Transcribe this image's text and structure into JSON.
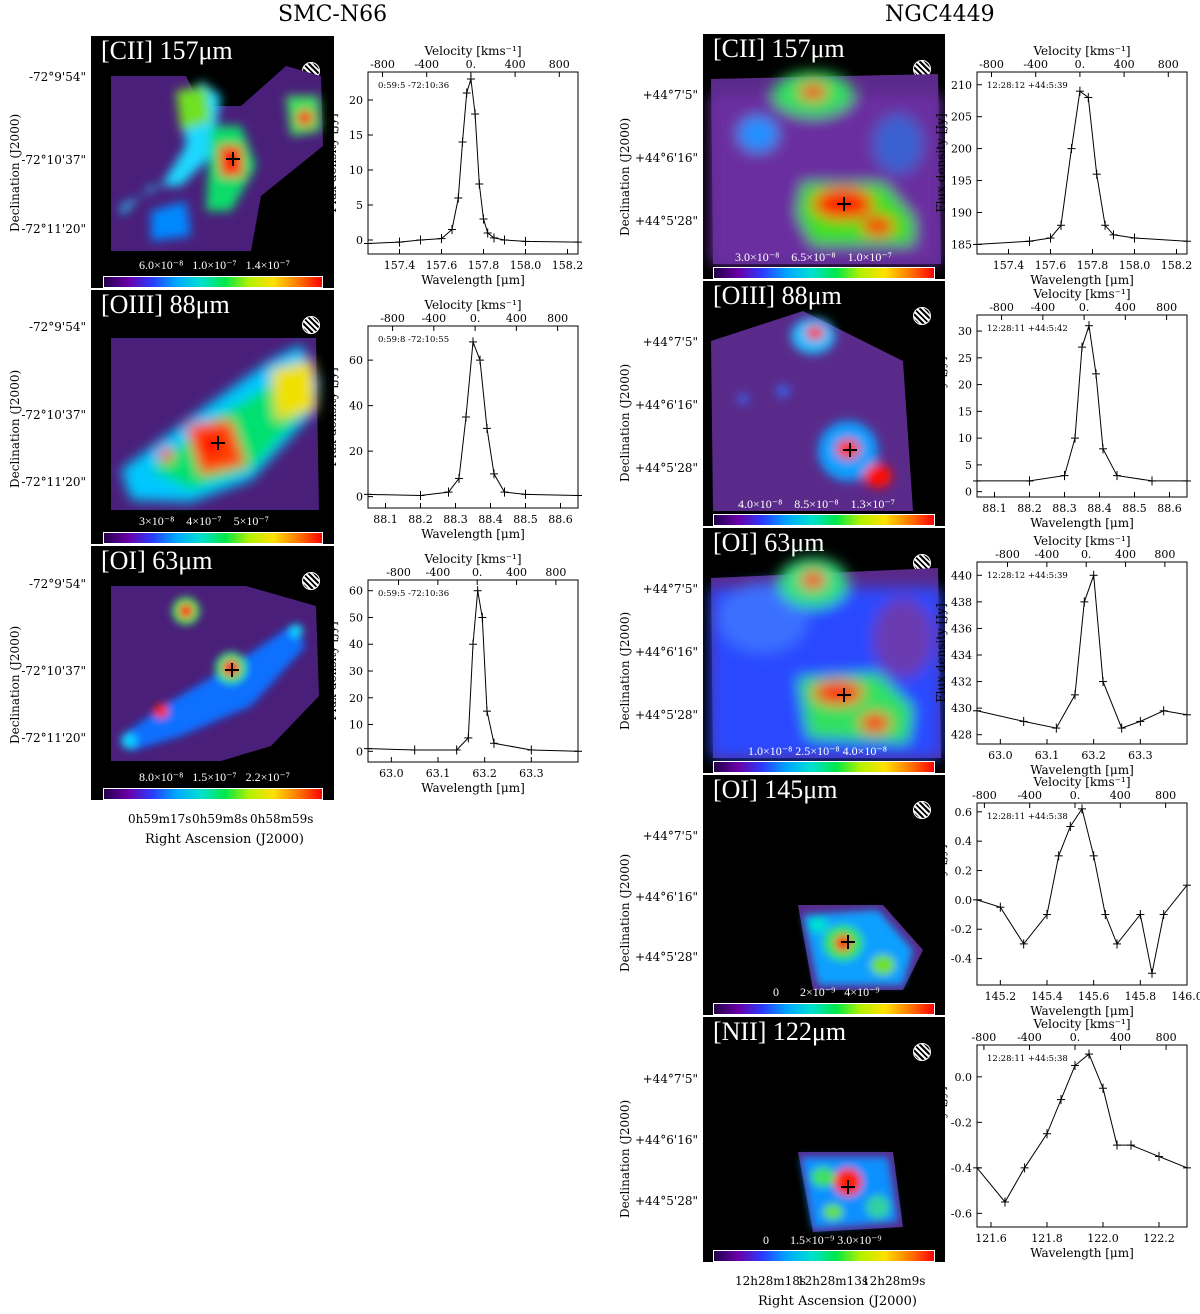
{
  "titles": {
    "left": "SMC-N66",
    "right": "NGC4449"
  },
  "map_axes": {
    "dec_label": "Declination (J2000)",
    "ra_label": "Right Ascension (J2000)",
    "smc_dec_ticks": [
      "-72°9'54\"",
      "-72°10'37\"",
      "-72°11'20\""
    ],
    "smc_ra_ticks": [
      "0h59m17s",
      "0h59m8s",
      "0h58m59s"
    ],
    "ngc_dec_ticks": [
      "+44°7'5\"",
      "+44°6'16\"",
      "+44°5'28\""
    ],
    "ngc_ra_ticks": [
      "12h28m18s",
      "12h28m13s",
      "12h28m9s"
    ]
  },
  "smc_panels": [
    {
      "label": "[CII] 157μm",
      "cbar": [
        "6.0×10⁻⁸",
        "1.0×10⁻⁷",
        "1.4×10⁻⁷"
      ]
    },
    {
      "label": "[OIII] 88μm",
      "cbar": [
        "3×10⁻⁸",
        "4×10⁻⁷",
        "5×10⁻⁷"
      ]
    },
    {
      "label": "[OI] 63μm",
      "cbar": [
        "8.0×10⁻⁸",
        "1.5×10⁻⁷",
        "2.2×10⁻⁷"
      ]
    }
  ],
  "ngc_panels": [
    {
      "label": "[CII] 157μm",
      "cbar": [
        "3.0×10⁻⁸",
        "6.5×10⁻⁸",
        "1.0×10⁻⁷"
      ]
    },
    {
      "label": "[OIII] 88μm",
      "cbar": [
        "4.0×10⁻⁸",
        "8.5×10⁻⁸",
        "1.3×10⁻⁷"
      ]
    },
    {
      "label": "[OI] 63μm",
      "cbar": [
        "1.0×10⁻⁸",
        "2.5×10⁻⁸",
        "4.0×10⁻⁸"
      ]
    },
    {
      "label": "[OI] 145μm",
      "cbar": [
        "0",
        "2×10⁻⁹",
        "4×10⁻⁹"
      ]
    },
    {
      "label": "[NII] 122μm",
      "cbar": [
        "0",
        "1.5×10⁻⁹",
        "3.0×10⁻⁹"
      ]
    }
  ],
  "chart_data": [
    {
      "type": "line",
      "id": "smc-cii",
      "coord": "0:59:5 -72:10:36",
      "xlabel": "Wavelength [μm]",
      "ylabel": "Flux density [Jy]",
      "toplabel": "Velocity [kms⁻¹]",
      "xlim": [
        157.25,
        158.25
      ],
      "ylim": [
        -2,
        24
      ],
      "xticks": [
        157.4,
        157.6,
        157.8,
        158.0,
        158.2
      ],
      "yticks": [
        0,
        5,
        10,
        15,
        20
      ],
      "vticks": [
        -800,
        -400,
        0,
        400,
        800
      ],
      "rest": 157.74,
      "x": [
        157.25,
        157.4,
        157.5,
        157.6,
        157.65,
        157.68,
        157.7,
        157.72,
        157.74,
        157.76,
        157.78,
        157.8,
        157.82,
        157.85,
        157.9,
        158.0,
        158.25
      ],
      "y": [
        -0.5,
        -0.3,
        0,
        0.2,
        1.5,
        6,
        14,
        21,
        23,
        18,
        8,
        3,
        1,
        0.3,
        0,
        -0.2,
        -0.3
      ]
    },
    {
      "type": "line",
      "id": "smc-oiii",
      "coord": "0:59:8 -72:10:55",
      "xlabel": "Wavelength [μm]",
      "ylabel": "Flux density [Jy]",
      "toplabel": "Velocity [kms⁻¹]",
      "xlim": [
        88.05,
        88.65
      ],
      "ylim": [
        -5,
        75
      ],
      "xticks": [
        88.1,
        88.2,
        88.3,
        88.4,
        88.5,
        88.6
      ],
      "yticks": [
        0,
        20,
        40,
        60
      ],
      "vticks": [
        -800,
        -400,
        0,
        400,
        800
      ],
      "rest": 88.356,
      "x": [
        88.05,
        88.2,
        88.28,
        88.31,
        88.33,
        88.35,
        88.37,
        88.39,
        88.41,
        88.44,
        88.5,
        88.65
      ],
      "y": [
        1,
        0.5,
        2,
        8,
        35,
        68,
        60,
        30,
        10,
        2,
        1,
        0.5
      ]
    },
    {
      "type": "line",
      "id": "smc-oi",
      "coord": "0:59:5 -72:10:36",
      "xlabel": "Wavelength [μm]",
      "ylabel": "Flux density [Jy]",
      "toplabel": "Velocity [kms⁻¹]",
      "xlim": [
        62.95,
        63.4
      ],
      "ylim": [
        -4,
        64
      ],
      "xticks": [
        63.0,
        63.1,
        63.2,
        63.3
      ],
      "yticks": [
        0,
        10,
        20,
        30,
        40,
        50,
        60
      ],
      "vticks": [
        -800,
        -400,
        0,
        400,
        800
      ],
      "rest": 63.184,
      "x": [
        62.95,
        63.05,
        63.14,
        63.165,
        63.175,
        63.185,
        63.195,
        63.205,
        63.22,
        63.3,
        63.4
      ],
      "y": [
        1,
        0.5,
        0.5,
        5,
        40,
        60,
        50,
        15,
        3,
        0.5,
        0
      ]
    },
    {
      "type": "line",
      "id": "ngc-cii",
      "coord": "12:28:12 +44:5:39",
      "xlabel": "Wavelength [μm]",
      "ylabel": "Flux density [Jy]",
      "toplabel": "Velocity [kms⁻¹]",
      "xlim": [
        157.25,
        158.25
      ],
      "ylim": [
        183.5,
        212
      ],
      "xticks": [
        157.4,
        157.6,
        157.8,
        158.0,
        158.2
      ],
      "yticks": [
        185,
        190,
        195,
        200,
        205,
        210
      ],
      "vticks": [
        -800,
        -400,
        0,
        400,
        800
      ],
      "rest": 157.74,
      "x": [
        157.25,
        157.5,
        157.6,
        157.65,
        157.7,
        157.74,
        157.78,
        157.82,
        157.86,
        157.9,
        158.0,
        158.25
      ],
      "y": [
        185,
        185.5,
        186,
        188,
        200,
        209,
        208,
        196,
        188,
        186.5,
        186,
        185.5
      ]
    },
    {
      "type": "line",
      "id": "ngc-oiii",
      "coord": "12:28:11 +44:5:42",
      "xlabel": "Wavelength [μm]",
      "ylabel": "Flux density [Jy]",
      "toplabel": "Velocity [kms⁻¹]",
      "xlim": [
        88.05,
        88.65
      ],
      "ylim": [
        -1,
        33
      ],
      "xticks": [
        88.1,
        88.2,
        88.3,
        88.4,
        88.5,
        88.6
      ],
      "yticks": [
        0,
        5,
        10,
        15,
        20,
        25,
        30
      ],
      "vticks": [
        -800,
        -400,
        0,
        400,
        800
      ],
      "rest": 88.356,
      "x": [
        88.05,
        88.2,
        88.3,
        88.33,
        88.35,
        88.37,
        88.39,
        88.41,
        88.45,
        88.55,
        88.65
      ],
      "y": [
        2,
        2,
        3,
        10,
        27,
        31,
        22,
        8,
        3,
        2,
        2
      ]
    },
    {
      "type": "line",
      "id": "ngc-oi63",
      "coord": "12:28:12 +44:5:39",
      "xlabel": "Wavelength [μm]",
      "ylabel": "Flux density [Jy]",
      "toplabel": "Velocity [kms⁻¹]",
      "xlim": [
        62.95,
        63.4
      ],
      "ylim": [
        427.3,
        441
      ],
      "xticks": [
        63.0,
        63.1,
        63.2,
        63.3
      ],
      "yticks": [
        428,
        430,
        432,
        434,
        436,
        438,
        440
      ],
      "vticks": [
        -800,
        -400,
        0,
        400,
        800
      ],
      "rest": 63.184,
      "x": [
        62.95,
        63.05,
        63.12,
        63.16,
        63.18,
        63.2,
        63.22,
        63.26,
        63.3,
        63.35,
        63.4
      ],
      "y": [
        429.8,
        429,
        428.5,
        431,
        438,
        440,
        432,
        428.5,
        429,
        429.8,
        429.5
      ]
    },
    {
      "type": "line",
      "id": "ngc-oi145",
      "coord": "12:28:11 +44:5:38",
      "xlabel": "Wavelength [μm]",
      "ylabel": "Flux density [Jy]",
      "toplabel": "Velocity [kms⁻¹]",
      "xlim": [
        145.1,
        146.0
      ],
      "ylim": [
        -0.58,
        0.66
      ],
      "xticks": [
        145.2,
        145.4,
        145.6,
        145.8,
        146.0
      ],
      "yticks": [
        -0.4,
        -0.2,
        0.0,
        0.2,
        0.4,
        0.6
      ],
      "vticks": [
        -800,
        -400,
        0,
        400,
        800
      ],
      "rest": 145.52,
      "x": [
        145.1,
        145.2,
        145.3,
        145.4,
        145.45,
        145.5,
        145.55,
        145.6,
        145.65,
        145.7,
        145.8,
        145.85,
        145.9,
        146.0
      ],
      "y": [
        0,
        -0.05,
        -0.3,
        -0.1,
        0.3,
        0.5,
        0.62,
        0.3,
        -0.1,
        -0.3,
        -0.1,
        -0.5,
        -0.1,
        0.1
      ]
    },
    {
      "type": "line",
      "id": "ngc-nii",
      "coord": "12:28:11 +44:5:38",
      "xlabel": "Wavelength [μm]",
      "ylabel": "Flux density [Jy]",
      "toplabel": "Velocity [kms⁻¹]",
      "xlim": [
        121.55,
        122.3
      ],
      "ylim": [
        -0.66,
        0.14
      ],
      "xticks": [
        121.6,
        121.8,
        122.0,
        122.2
      ],
      "yticks": [
        -0.6,
        -0.4,
        -0.2,
        0.0
      ],
      "vticks": [
        -800,
        -400,
        0,
        400,
        800
      ],
      "rest": 121.9,
      "x": [
        121.55,
        121.65,
        121.72,
        121.8,
        121.85,
        121.9,
        121.95,
        122.0,
        122.05,
        122.1,
        122.2,
        122.3
      ],
      "y": [
        -0.4,
        -0.55,
        -0.4,
        -0.25,
        -0.1,
        0.05,
        0.1,
        -0.05,
        -0.3,
        -0.3,
        -0.35,
        -0.4
      ]
    }
  ]
}
